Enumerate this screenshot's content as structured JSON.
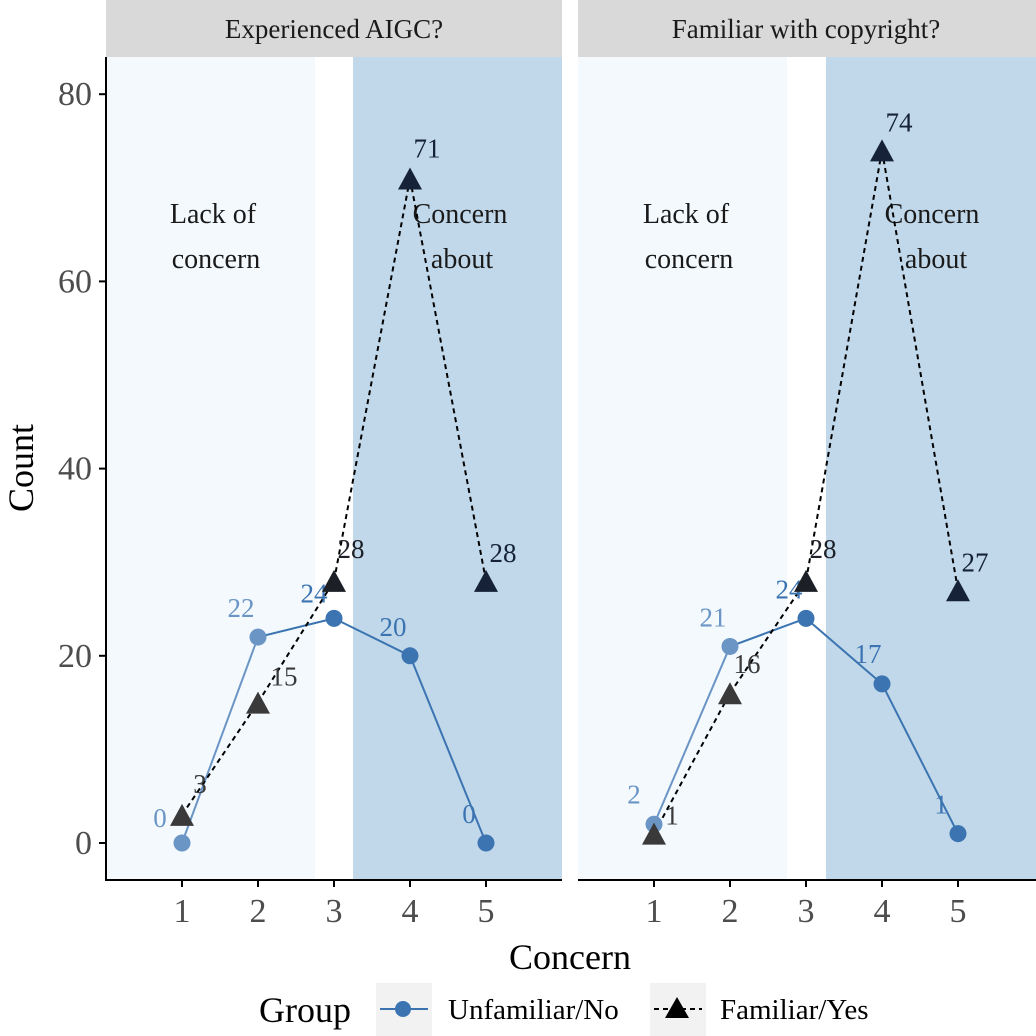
{
  "chart_data": {
    "type": "line",
    "x_axis": {
      "label": "Concern",
      "ticks": [
        1,
        2,
        3,
        4,
        5
      ],
      "range": [
        0,
        6
      ]
    },
    "y_axis": {
      "label": "Count",
      "ticks": [
        0,
        20,
        40,
        60,
        80
      ],
      "range": [
        -4,
        84
      ]
    },
    "legend": {
      "title": "Group",
      "position": "bottom",
      "entries": [
        {
          "name": "Unfamiliar/No",
          "marker": "circle",
          "line": "solid"
        },
        {
          "name": "Familiar/Yes",
          "marker": "triangle",
          "line": "dashed"
        }
      ]
    },
    "regions": [
      {
        "name": "low",
        "label": [
          "Lack of",
          "concern"
        ],
        "x_from": 0,
        "x_to": 2.75,
        "color": "#f3f9fd"
      },
      {
        "name": "high",
        "label": [
          "Concern",
          "about"
        ],
        "x_from": 3.25,
        "x_to": 6,
        "color": "#c1d8ea"
      }
    ],
    "panels": [
      {
        "title": "Experienced AIGC?",
        "series": [
          {
            "name": "Unfamiliar/No",
            "x": [
              1,
              2,
              3,
              4,
              5
            ],
            "values": [
              0,
              22,
              24,
              20,
              0
            ]
          },
          {
            "name": "Familiar/Yes",
            "x": [
              1,
              2,
              3,
              4,
              5
            ],
            "values": [
              3,
              15,
              28,
              71,
              28
            ]
          }
        ]
      },
      {
        "title": "Familiar with copyright?",
        "series": [
          {
            "name": "Unfamiliar/No",
            "x": [
              1,
              2,
              3,
              4,
              5
            ],
            "values": [
              2,
              21,
              24,
              17,
              1
            ]
          },
          {
            "name": "Familiar/Yes",
            "x": [
              1,
              2,
              3,
              4,
              5
            ],
            "values": [
              1,
              16,
              28,
              74,
              27
            ]
          }
        ]
      }
    ],
    "colors": {
      "unfamiliar_by_x": [
        "#6a95c5",
        "#6a95c5",
        "#3b74b1",
        "#3b74b1",
        "#3b74b1"
      ],
      "familiar_by_x": [
        "#3a3a3a",
        "#3a3a3a",
        "#1c1f26",
        "#152238",
        "#152238"
      ],
      "strip_bg": "#d9d9d9",
      "axis": "#000000"
    }
  }
}
